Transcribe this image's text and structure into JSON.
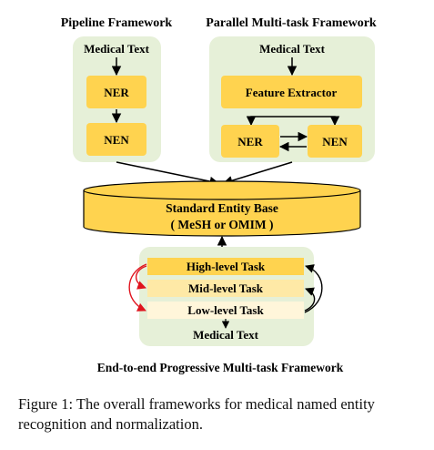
{
  "titles": {
    "pipeline": "Pipeline Framework",
    "parallel": "Parallel Multi-task Framework",
    "progressive": "End-to-end Progressive Multi-task Framework"
  },
  "pipeline": {
    "input_label": "Medical Text",
    "step1": "NER",
    "step2": "NEN"
  },
  "parallel": {
    "input_label": "Medical Text",
    "extractor": "Feature Extractor",
    "task_left": "NER",
    "task_right": "NEN"
  },
  "entity_base": {
    "line1": "Standard Entity Base",
    "line2": "( MeSH or OMIM )"
  },
  "progressive": {
    "high": "High-level Task",
    "mid": "Mid-level Task",
    "low": "Low-level Task",
    "input_label": "Medical Text"
  },
  "caption": "Figure 1: The overall frameworks for medical named entity recognition and normalization.",
  "colors": {
    "panel_green": "#e6f0d8",
    "box_orange": "#ffd34f",
    "cylinder_orange": "#ffd34f",
    "high_task": "#ffd34f",
    "mid_task": "#fee9a6",
    "low_task": "#fff6da",
    "red_arrow": "#e0141e"
  }
}
